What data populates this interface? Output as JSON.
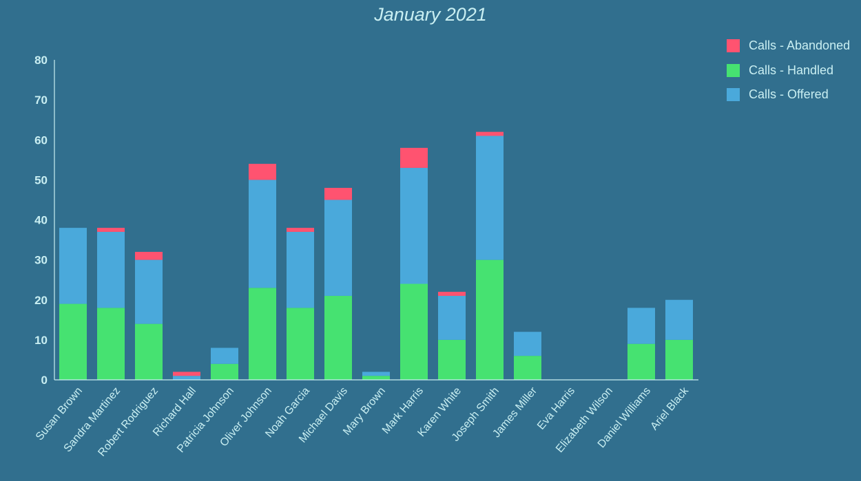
{
  "chart_data": {
    "type": "bar",
    "stacked": true,
    "title": "January 2021",
    "xlabel": "",
    "ylabel": "",
    "ylim": [
      0,
      80
    ],
    "yticks": [
      0,
      10,
      20,
      30,
      40,
      50,
      60,
      70,
      80
    ],
    "grid": false,
    "legend_position": "top-right",
    "categories": [
      "Susan Brown",
      "Sandra Martinez",
      "Robert Rodriguez",
      "Richard Hall",
      "Patricia Johnson",
      "Oliver Johnson",
      "Noah Garcia",
      "Michael Davis",
      "Mary Brown",
      "Mark Harris",
      "Karen White",
      "Joseph Smith",
      "James Miller",
      "Eva Harris",
      "Elizabeth Wilson",
      "Daniel Williams",
      "Ariel Black"
    ],
    "series": [
      {
        "name": "Calls - Handled",
        "color": "#46e271",
        "values": [
          19,
          18,
          14,
          0,
          4,
          23,
          18,
          21,
          1,
          24,
          10,
          30,
          6,
          0,
          0,
          9,
          10
        ]
      },
      {
        "name": "Calls - Offered",
        "color": "#4aa9db",
        "values": [
          19,
          19,
          16,
          1,
          4,
          27,
          19,
          24,
          1,
          29,
          11,
          31,
          6,
          0,
          0,
          9,
          10
        ]
      },
      {
        "name": "Calls - Abandoned",
        "color": "#ff5370",
        "values": [
          0,
          1,
          2,
          1,
          0,
          4,
          1,
          3,
          0,
          5,
          1,
          1,
          0,
          0,
          0,
          0,
          0
        ]
      }
    ]
  },
  "legend": {
    "items": [
      {
        "label": "Calls - Abandoned",
        "color": "#ff5370"
      },
      {
        "label": "Calls - Handled",
        "color": "#46e271"
      },
      {
        "label": "Calls - Offered",
        "color": "#4aa9db"
      }
    ]
  },
  "colors": {
    "background": "#316f8e",
    "text": "#c9eff2",
    "axis": "#c9eff2"
  }
}
